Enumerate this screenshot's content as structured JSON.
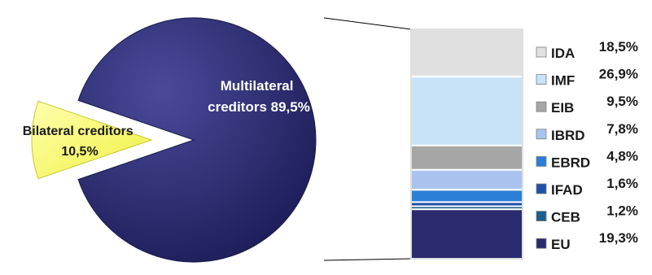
{
  "chart_data": [
    {
      "type": "pie",
      "slices": [
        {
          "label_line1": "Multilateral",
          "label_line2": "creditors 89,5%",
          "value": 89.5,
          "color": "#2a2a6e",
          "exploded": false
        },
        {
          "label_line1": "Bilateral creditors",
          "label_line2": "10,5%",
          "value": 10.5,
          "color": "#fafa78",
          "exploded": true
        }
      ]
    },
    {
      "type": "bar",
      "stacked": true,
      "categories": [
        "IDA",
        "IMF",
        "EIB",
        "IBRD",
        "EBRD",
        "IFAD",
        "CEB",
        "EU"
      ],
      "series": [
        {
          "label": "IDA",
          "value": 18.5,
          "value_text": "18,5%",
          "color": "#e0e0e0"
        },
        {
          "label": "IMF",
          "value": 26.9,
          "value_text": "26,9%",
          "color": "#c8e2f8"
        },
        {
          "label": "EIB",
          "value": 9.5,
          "value_text": "9,5%",
          "color": "#a6a6a6"
        },
        {
          "label": "IBRD",
          "value": 7.8,
          "value_text": "7,8%",
          "color": "#a9c3ee"
        },
        {
          "label": "EBRD",
          "value": 4.8,
          "value_text": "4,8%",
          "color": "#2a7fd6"
        },
        {
          "label": "IFAD",
          "value": 1.6,
          "value_text": "1,6%",
          "color": "#1f4fa6"
        },
        {
          "label": "CEB",
          "value": 1.2,
          "value_text": "1,2%",
          "color": "#1a5f8e"
        },
        {
          "label": "EU",
          "value": 19.3,
          "value_text": "19,3%",
          "color": "#2a2a6e"
        }
      ],
      "legend_position": "right"
    }
  ]
}
